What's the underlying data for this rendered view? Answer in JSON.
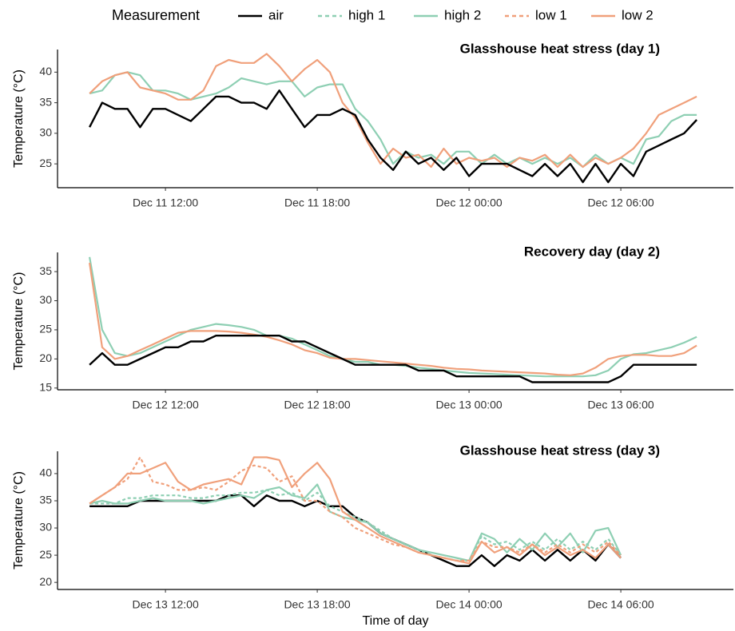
{
  "legend_title": "Measurement",
  "chart_data": [
    {
      "type": "line",
      "title": "Glasshouse heat stress (day 1)",
      "ylabel": "Temperature (°C)",
      "x": [
        "Dec 11 09:00",
        "Dec 11 09:30",
        "Dec 11 10:00",
        "Dec 11 10:30",
        "Dec 11 11:00",
        "Dec 11 11:30",
        "Dec 11 12:00",
        "Dec 11 12:30",
        "Dec 11 13:00",
        "Dec 11 13:30",
        "Dec 11 14:00",
        "Dec 11 14:30",
        "Dec 11 15:00",
        "Dec 11 15:30",
        "Dec 11 16:00",
        "Dec 11 16:30",
        "Dec 11 17:00",
        "Dec 11 17:30",
        "Dec 11 18:00",
        "Dec 11 18:30",
        "Dec 11 19:00",
        "Dec 11 19:30",
        "Dec 11 20:00",
        "Dec 11 20:30",
        "Dec 11 21:00",
        "Dec 11 21:30",
        "Dec 11 22:00",
        "Dec 11 22:30",
        "Dec 11 23:00",
        "Dec 11 23:30",
        "Dec 12 00:00",
        "Dec 12 00:30",
        "Dec 12 01:00",
        "Dec 12 01:30",
        "Dec 12 02:00",
        "Dec 12 02:30",
        "Dec 12 03:00",
        "Dec 12 03:30",
        "Dec 12 04:00",
        "Dec 12 04:30",
        "Dec 12 05:00",
        "Dec 12 05:30",
        "Dec 12 06:00",
        "Dec 12 06:30",
        "Dec 12 07:00",
        "Dec 12 07:30",
        "Dec 12 08:00",
        "Dec 12 08:30",
        "Dec 12 09:00"
      ],
      "series": [
        {
          "name": "high 2",
          "color": "#8ecfb3",
          "values": [
            36.5,
            37,
            39.5,
            40,
            39.5,
            37,
            37,
            36.5,
            35.5,
            36,
            36.5,
            37.5,
            39,
            38.5,
            38,
            38.5,
            38.5,
            36,
            37.5,
            38,
            38,
            34,
            32,
            29,
            25,
            27,
            26,
            26.5,
            25,
            27,
            27,
            25,
            26.5,
            25,
            26,
            25,
            26,
            25,
            26,
            24.5,
            26.5,
            25,
            26,
            25,
            29,
            29.5,
            32,
            33,
            33
          ]
        },
        {
          "name": "low 2",
          "color": "#f0a07b",
          "values": [
            36.5,
            38.5,
            39.5,
            40,
            37.5,
            37,
            36.5,
            35.5,
            35.5,
            37,
            41,
            42,
            41.5,
            41.5,
            43,
            41,
            38.5,
            40.5,
            42,
            40,
            35,
            32.5,
            28.5,
            25,
            27.5,
            26,
            26.5,
            24.5,
            27.5,
            25,
            26,
            25.5,
            26,
            24.5,
            26,
            25.5,
            26.5,
            24.5,
            26.5,
            24.5,
            26,
            25,
            26,
            27.5,
            30,
            33,
            34,
            35,
            36
          ]
        },
        {
          "name": "air",
          "color": "#000000",
          "values": [
            31,
            35,
            34,
            34,
            31,
            34,
            34,
            33,
            32,
            34,
            36,
            36,
            35,
            35,
            34,
            37,
            34,
            31,
            33,
            33,
            34,
            33,
            29,
            26,
            24,
            27,
            25,
            26,
            24,
            26,
            23,
            25,
            25,
            25,
            24,
            23,
            25,
            23,
            25,
            22,
            25,
            22,
            25,
            23,
            27,
            28,
            29,
            30,
            32.2
          ]
        }
      ],
      "xlim": [
        "Dec 11 07:44",
        "Dec 12 10:27"
      ],
      "xticks": [
        "Dec 11 12:00",
        "Dec 11 18:00",
        "Dec 12 00:00",
        "Dec 12 06:00"
      ],
      "ylim": [
        21.1,
        43.7
      ],
      "yticks": [
        25,
        30,
        35,
        40
      ]
    },
    {
      "type": "line",
      "title": "Recovery day (day 2)",
      "ylabel": "Temperature (°C)",
      "x": [
        "Dec 12 09:00",
        "Dec 12 09:30",
        "Dec 12 10:00",
        "Dec 12 10:30",
        "Dec 12 11:00",
        "Dec 12 11:30",
        "Dec 12 12:00",
        "Dec 12 12:30",
        "Dec 12 13:00",
        "Dec 12 13:30",
        "Dec 12 14:00",
        "Dec 12 14:30",
        "Dec 12 15:00",
        "Dec 12 15:30",
        "Dec 12 16:00",
        "Dec 12 16:30",
        "Dec 12 17:00",
        "Dec 12 17:30",
        "Dec 12 18:00",
        "Dec 12 18:30",
        "Dec 12 19:00",
        "Dec 12 19:30",
        "Dec 12 20:00",
        "Dec 12 20:30",
        "Dec 12 21:00",
        "Dec 12 21:30",
        "Dec 12 22:00",
        "Dec 12 22:30",
        "Dec 12 23:00",
        "Dec 12 23:30",
        "Dec 13 00:00",
        "Dec 13 00:30",
        "Dec 13 01:00",
        "Dec 13 01:30",
        "Dec 13 02:00",
        "Dec 13 02:30",
        "Dec 13 03:00",
        "Dec 13 03:30",
        "Dec 13 04:00",
        "Dec 13 04:30",
        "Dec 13 05:00",
        "Dec 13 05:30",
        "Dec 13 06:00",
        "Dec 13 06:30",
        "Dec 13 07:00",
        "Dec 13 07:30",
        "Dec 13 08:00",
        "Dec 13 08:30",
        "Dec 13 09:00"
      ],
      "series": [
        {
          "name": "high 2",
          "color": "#8ecfb3",
          "values": [
            37.5,
            25,
            21,
            20.5,
            21,
            22,
            23,
            24,
            25,
            25.5,
            26,
            25.8,
            25.5,
            25,
            24,
            24,
            23.5,
            22.5,
            21.5,
            20.5,
            20,
            19.5,
            19.5,
            19,
            19,
            18.8,
            18.5,
            18.3,
            18,
            17.8,
            17.6,
            17.5,
            17.4,
            17.3,
            17.2,
            17.1,
            17,
            17,
            17,
            17,
            17.2,
            18,
            20,
            20.8,
            21,
            21.5,
            22,
            22.8,
            23.8
          ]
        },
        {
          "name": "low 2",
          "color": "#f0a07b",
          "values": [
            36.5,
            22,
            20,
            20.5,
            21.5,
            22.5,
            23.5,
            24.5,
            24.8,
            24.8,
            24.8,
            24.7,
            24.5,
            24.2,
            23.8,
            23.2,
            22.5,
            21.5,
            21,
            20.2,
            20,
            20,
            19.8,
            19.6,
            19.4,
            19.2,
            19,
            18.8,
            18.5,
            18.3,
            18.2,
            18,
            17.9,
            17.8,
            17.7,
            17.6,
            17.5,
            17.3,
            17.2,
            17.5,
            18.5,
            20,
            20.5,
            20.7,
            20.7,
            20.5,
            20.5,
            21,
            22.3
          ]
        },
        {
          "name": "air",
          "color": "#000000",
          "values": [
            19,
            21,
            19,
            19,
            20,
            21,
            22,
            22,
            23,
            23,
            24,
            24,
            24,
            24,
            24,
            24,
            23,
            23,
            22,
            21,
            20,
            19,
            19,
            19,
            19,
            19,
            18,
            18,
            18,
            17,
            17,
            17,
            17,
            17,
            17,
            16,
            16,
            16,
            16,
            16,
            16,
            16,
            17,
            19,
            19,
            19,
            19,
            19,
            19
          ]
        }
      ],
      "xlim": [
        "Dec 12 07:44",
        "Dec 13 10:27"
      ],
      "xticks": [
        "Dec 12 12:00",
        "Dec 12 18:00",
        "Dec 13 00:00",
        "Dec 13 06:00"
      ],
      "ylim": [
        14.7,
        38.3
      ],
      "yticks": [
        15,
        20,
        25,
        30,
        35
      ]
    },
    {
      "type": "line",
      "title": "Glasshouse heat stress (day 3)",
      "ylabel": "Temperature (°C)",
      "xlabel": "Time of day",
      "x": [
        "Dec 13 09:00",
        "Dec 13 09:30",
        "Dec 13 10:00",
        "Dec 13 10:30",
        "Dec 13 11:00",
        "Dec 13 11:30",
        "Dec 13 12:00",
        "Dec 13 12:30",
        "Dec 13 13:00",
        "Dec 13 13:30",
        "Dec 13 14:00",
        "Dec 13 14:30",
        "Dec 13 15:00",
        "Dec 13 15:30",
        "Dec 13 16:00",
        "Dec 13 16:30",
        "Dec 13 17:00",
        "Dec 13 17:30",
        "Dec 13 18:00",
        "Dec 13 18:30",
        "Dec 13 19:00",
        "Dec 13 19:30",
        "Dec 13 20:00",
        "Dec 13 20:30",
        "Dec 13 21:00",
        "Dec 13 21:30",
        "Dec 13 22:00",
        "Dec 13 22:30",
        "Dec 13 23:00",
        "Dec 13 23:30",
        "Dec 14 00:00",
        "Dec 14 00:30",
        "Dec 14 01:00",
        "Dec 14 01:30",
        "Dec 14 02:00",
        "Dec 14 02:30",
        "Dec 14 03:00",
        "Dec 14 03:30",
        "Dec 14 04:00",
        "Dec 14 04:30",
        "Dec 14 05:00",
        "Dec 14 05:30",
        "Dec 14 06:00"
      ],
      "series": [
        {
          "name": "air",
          "color": "#000000",
          "values": [
            34,
            34,
            34,
            34,
            35,
            35,
            35,
            35,
            35,
            35,
            35,
            36,
            36,
            34,
            36,
            35,
            35,
            34,
            35,
            34,
            34,
            32,
            31,
            29,
            28,
            27,
            26,
            25,
            24,
            23,
            23,
            25,
            23,
            25,
            24,
            26,
            24,
            26,
            24,
            26,
            24,
            27,
            24.5
          ]
        },
        {
          "name": "high 1",
          "color": "#8ecfb3",
          "dash": true,
          "values": [
            34.5,
            34.5,
            34.5,
            35.5,
            35.5,
            36,
            36,
            36,
            35.5,
            35.5,
            36,
            36,
            36.5,
            36.5,
            37,
            36,
            36.5,
            35,
            36.5,
            34,
            33,
            32,
            31,
            29.5,
            28,
            27,
            26,
            25,
            24.5,
            24,
            24,
            28.5,
            27,
            27.5,
            26,
            27.5,
            26,
            28,
            26,
            27.5,
            26,
            28,
            25
          ]
        },
        {
          "name": "high 2",
          "color": "#8ecfb3",
          "values": [
            34.5,
            35,
            34.5,
            34.5,
            35,
            35.5,
            35,
            35,
            35,
            34.5,
            35,
            35.5,
            36,
            35.5,
            37,
            37.5,
            36,
            35.5,
            38,
            33,
            32,
            31.5,
            31,
            29,
            28,
            27,
            26,
            25.5,
            25,
            24.5,
            24,
            29,
            28,
            25.5,
            28,
            26,
            29,
            26.5,
            29,
            25.5,
            29.5,
            30,
            25
          ]
        },
        {
          "name": "low 1",
          "color": "#f0a07b",
          "dash": true,
          "values": [
            34.5,
            36,
            37.5,
            39,
            43,
            38.5,
            38,
            37,
            37,
            37.5,
            37,
            38.5,
            40.5,
            41.5,
            41,
            38.5,
            39.5,
            35,
            35,
            33,
            32,
            30,
            29,
            28,
            27,
            26.5,
            25.5,
            25,
            24.5,
            24,
            24,
            27.5,
            26.5,
            26.5,
            25.5,
            27,
            25.5,
            27,
            25.5,
            27,
            25.5,
            27.5,
            25
          ]
        },
        {
          "name": "low 2",
          "color": "#f0a07b",
          "values": [
            34.5,
            36,
            37.5,
            40,
            40,
            41,
            42,
            38.5,
            37,
            38,
            38.5,
            39,
            38,
            43,
            43,
            42.5,
            37.5,
            40,
            42,
            39,
            33,
            31.5,
            30,
            28.5,
            27.5,
            26.5,
            25.5,
            25,
            24.5,
            24,
            23.5,
            27.5,
            25.5,
            26.5,
            25,
            27,
            25,
            26.5,
            25,
            26,
            24.5,
            27,
            24.5
          ]
        }
      ],
      "xlim": [
        "Dec 13 07:44",
        "Dec 14 10:27"
      ],
      "xticks": [
        "Dec 13 12:00",
        "Dec 13 18:00",
        "Dec 14 00:00",
        "Dec 14 06:00"
      ],
      "ylim": [
        18.7,
        44.1
      ],
      "yticks": [
        20,
        25,
        30,
        35,
        40
      ]
    }
  ]
}
